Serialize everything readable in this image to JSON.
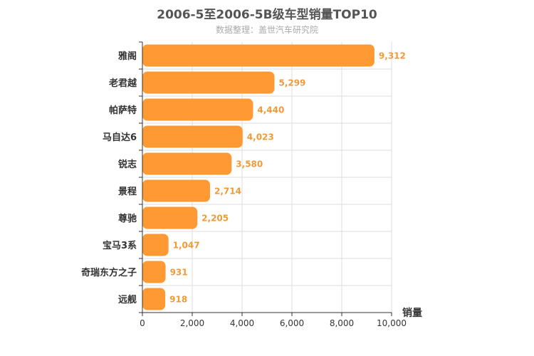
{
  "chart_data": {
    "type": "bar",
    "orientation": "horizontal",
    "title": "2006-5至2006-5B级车型销量TOP10",
    "subtitle": "数据整理：盖世汽车研究院",
    "categories": [
      "雅阁",
      "老君越",
      "帕萨特",
      "马自达6",
      "锐志",
      "景程",
      "尊驰",
      "宝马3系",
      "奇瑞东方之子",
      "远舰"
    ],
    "values": [
      9312,
      5299,
      4440,
      4023,
      3580,
      2714,
      2205,
      1047,
      931,
      918
    ],
    "value_labels": [
      "9,312",
      "5,299",
      "4,440",
      "4,023",
      "3,580",
      "2,714",
      "2,205",
      "1,047",
      "931",
      "918"
    ],
    "xlabel": "销量",
    "ylabel": "",
    "xlim": [
      0,
      10000
    ],
    "xticks": [
      0,
      2000,
      4000,
      6000,
      8000,
      10000
    ],
    "xtick_labels": [
      "0",
      "2,000",
      "4,000",
      "6,000",
      "8,000",
      "10,000"
    ],
    "grid": true,
    "bar_color": "#ff9933",
    "label_color": "#f09a38"
  }
}
